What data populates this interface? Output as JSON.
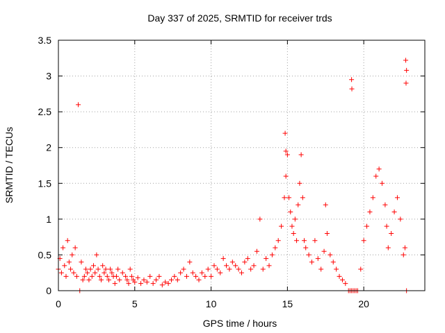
{
  "chart_data": {
    "type": "scatter",
    "title": "Day 337 of 2025, SRMTID for receiver trds",
    "xlabel": "GPS time / hours",
    "ylabel": "SRMTID / TECUs",
    "xlim": [
      0,
      24
    ],
    "ylim": [
      0,
      3.5
    ],
    "x_ticks": [
      0,
      5,
      10,
      15,
      20
    ],
    "x_tick_labels": [
      "0",
      "5",
      "10",
      "15",
      "20"
    ],
    "y_ticks": [
      0,
      0.5,
      1,
      1.5,
      2,
      2.5,
      3,
      3.5
    ],
    "y_tick_labels": [
      "0",
      "0.5",
      "1",
      "1.5",
      "2",
      "2.5",
      "3",
      "3.5"
    ],
    "grid": true,
    "marker": "+",
    "series": [
      {
        "name": "SRMTID",
        "color": "#ff0000",
        "x": [
          0.0,
          0.1,
          0.2,
          0.3,
          0.4,
          0.5,
          0.6,
          0.7,
          0.8,
          0.9,
          1.0,
          1.1,
          1.2,
          1.4,
          1.5,
          1.6,
          1.7,
          1.8,
          1.9,
          2.0,
          2.1,
          2.2,
          2.3,
          2.4,
          2.5,
          2.6,
          2.7,
          2.8,
          2.9,
          3.0,
          3.1,
          3.2,
          3.3,
          3.4,
          3.5,
          3.6,
          3.7,
          3.8,
          3.9,
          4.0,
          4.2,
          4.4,
          4.5,
          4.6,
          4.7,
          4.8,
          4.9,
          5.0,
          5.2,
          5.4,
          5.6,
          5.8,
          6.0,
          6.2,
          6.4,
          6.6,
          6.8,
          7.0,
          7.2,
          7.4,
          7.6,
          7.8,
          8.0,
          8.2,
          8.4,
          8.6,
          8.8,
          9.0,
          9.2,
          9.4,
          9.6,
          9.8,
          10.0,
          10.2,
          10.4,
          10.6,
          10.8,
          11.0,
          11.2,
          11.4,
          11.6,
          11.8,
          12.0,
          12.2,
          12.4,
          12.6,
          12.8,
          13.0,
          13.2,
          13.4,
          13.6,
          13.8,
          14.0,
          14.2,
          14.4,
          14.6,
          14.8,
          14.9,
          15.0,
          15.1,
          15.2,
          15.3,
          15.4,
          15.5,
          15.6,
          15.7,
          15.8,
          15.9,
          16.0,
          16.1,
          16.2,
          16.4,
          16.6,
          16.8,
          17.0,
          17.2,
          17.4,
          17.5,
          17.6,
          17.8,
          18.0,
          18.2,
          18.4,
          18.6,
          18.8,
          19.0,
          19.1,
          19.2,
          19.3,
          19.4,
          19.5,
          19.6,
          19.8,
          20.0,
          20.2,
          20.4,
          20.6,
          20.8,
          21.0,
          21.2,
          21.4,
          21.5,
          21.6,
          21.8,
          22.0,
          22.2,
          22.4,
          22.6,
          22.7,
          22.8,
          1.3,
          14.85,
          14.9,
          19.2,
          19.22,
          22.75,
          22.8,
          22.77
        ],
        "y": [
          0.3,
          0.45,
          0.25,
          0.6,
          0.35,
          0.2,
          0.7,
          0.4,
          0.3,
          0.5,
          0.25,
          0.6,
          0.2,
          0.0,
          0.4,
          0.15,
          0.2,
          0.3,
          0.25,
          0.15,
          0.3,
          0.2,
          0.35,
          0.25,
          0.5,
          0.3,
          0.2,
          0.15,
          0.35,
          0.25,
          0.3,
          0.2,
          0.15,
          0.3,
          0.25,
          0.2,
          0.1,
          0.2,
          0.3,
          0.15,
          0.25,
          0.2,
          0.15,
          0.1,
          0.3,
          0.2,
          0.15,
          0.12,
          0.18,
          0.1,
          0.15,
          0.12,
          0.2,
          0.1,
          0.15,
          0.2,
          0.08,
          0.12,
          0.1,
          0.15,
          0.2,
          0.15,
          0.25,
          0.3,
          0.2,
          0.4,
          0.25,
          0.2,
          0.15,
          0.25,
          0.2,
          0.3,
          0.2,
          0.35,
          0.3,
          0.25,
          0.45,
          0.35,
          0.3,
          0.4,
          0.35,
          0.3,
          0.25,
          0.4,
          0.45,
          0.3,
          0.35,
          0.55,
          1.0,
          0.3,
          0.45,
          0.35,
          0.5,
          0.6,
          0.7,
          0.9,
          1.3,
          1.6,
          1.9,
          1.3,
          1.1,
          0.9,
          0.8,
          1.0,
          0.7,
          1.2,
          1.5,
          1.9,
          1.3,
          0.7,
          0.6,
          0.5,
          0.4,
          0.7,
          0.45,
          0.3,
          0.55,
          1.2,
          0.8,
          0.5,
          0.4,
          0.3,
          0.2,
          0.15,
          0.1,
          0.0,
          0.0,
          0.0,
          0.0,
          0.0,
          0.0,
          0.0,
          0.3,
          0.7,
          0.9,
          1.1,
          1.3,
          1.6,
          1.7,
          1.5,
          1.2,
          0.9,
          0.6,
          0.8,
          1.1,
          1.3,
          1.0,
          0.5,
          0.6,
          0.0,
          2.6,
          2.2,
          1.95,
          2.95,
          2.82,
          3.22,
          3.08,
          2.9
        ]
      }
    ]
  }
}
